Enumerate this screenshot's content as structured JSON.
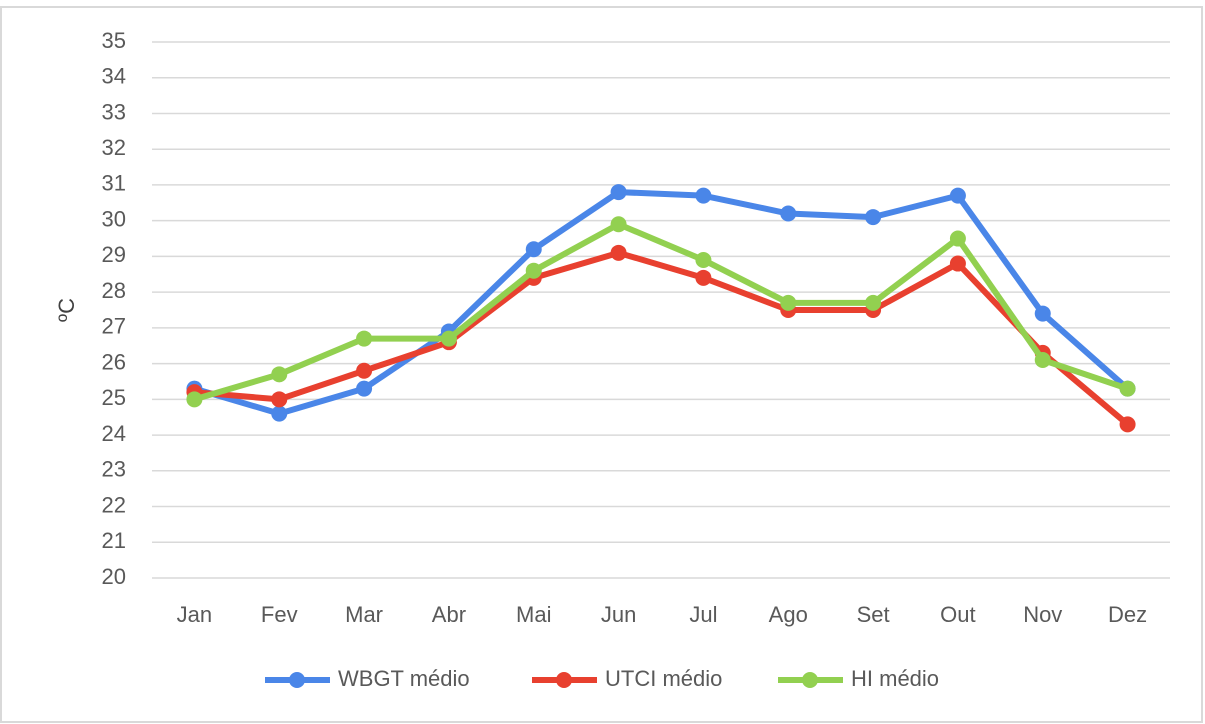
{
  "chart_data": {
    "type": "line",
    "ylabel": "ºC",
    "categories": [
      "Jan",
      "Fev",
      "Mar",
      "Abr",
      "Mai",
      "Jun",
      "Jul",
      "Ago",
      "Set",
      "Out",
      "Nov",
      "Dez"
    ],
    "series": [
      {
        "name": "WBGT médio",
        "color": "#4a86e8",
        "values": [
          25.3,
          24.6,
          25.3,
          26.9,
          29.2,
          30.8,
          30.7,
          30.2,
          30.1,
          30.7,
          27.4,
          25.3
        ]
      },
      {
        "name": "UTCI médio",
        "color": "#e8402f",
        "values": [
          25.2,
          25.0,
          25.8,
          26.6,
          28.4,
          29.1,
          28.4,
          27.5,
          27.5,
          28.8,
          26.3,
          24.3
        ]
      },
      {
        "name": "HI médio",
        "color": "#92d050",
        "values": [
          25.0,
          25.7,
          26.7,
          26.7,
          28.6,
          29.9,
          28.9,
          27.7,
          27.7,
          29.5,
          26.1,
          25.3
        ]
      }
    ],
    "ylim": [
      20,
      35
    ],
    "yticks": [
      20,
      21,
      22,
      23,
      24,
      25,
      26,
      27,
      28,
      29,
      30,
      31,
      32,
      33,
      34,
      35
    ],
    "grid": true,
    "legend": "bottom"
  }
}
